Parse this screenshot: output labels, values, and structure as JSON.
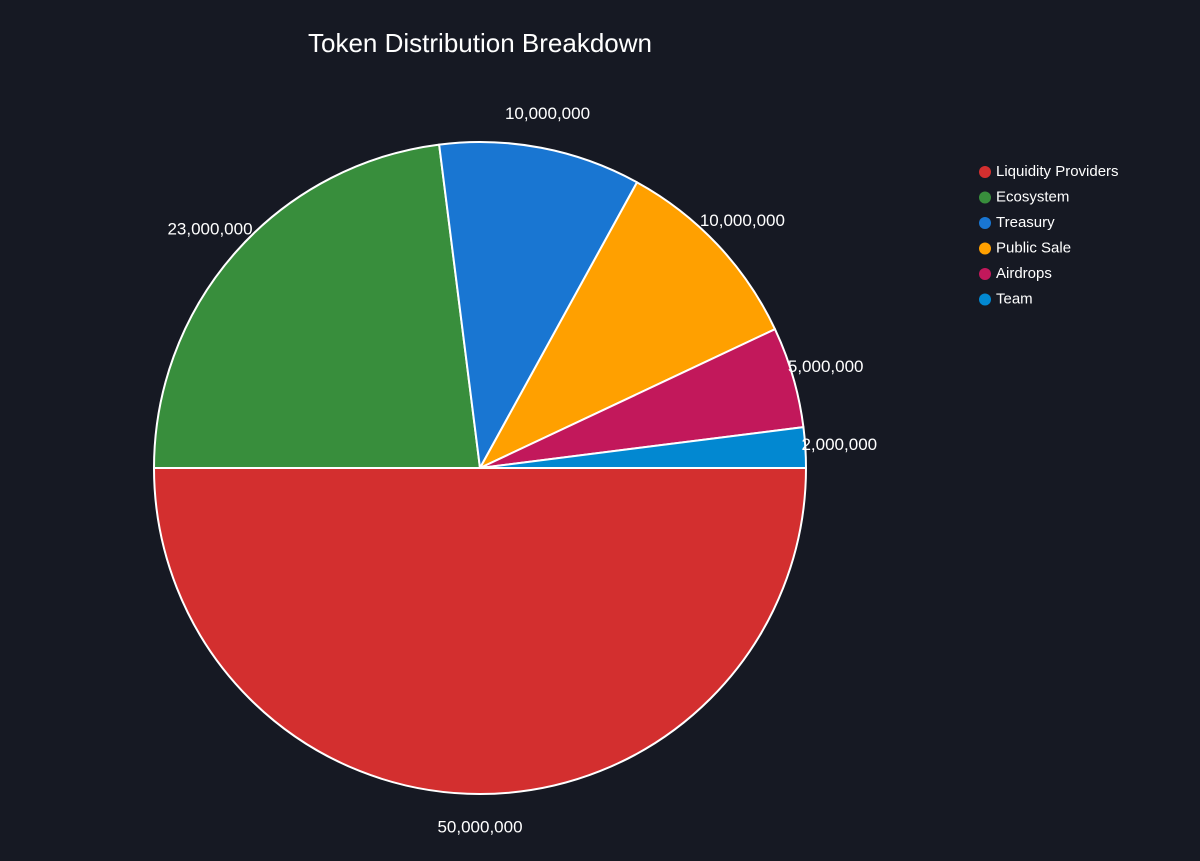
{
  "chart_data": {
    "type": "pie",
    "title": "Token Distribution Breakdown",
    "categories": [
      "Liquidity Providers",
      "Ecosystem",
      "Treasury",
      "Public Sale",
      "Airdrops",
      "Team"
    ],
    "values": [
      50000000,
      23000000,
      10000000,
      10000000,
      5000000,
      2000000
    ],
    "value_labels": [
      "50,000,000",
      "23,000,000",
      "10,000,000",
      "10,000,000",
      "5,000,000",
      "2,000,000"
    ],
    "colors": [
      "#d32f2f",
      "#388e3c",
      "#1976d2",
      "#ffa000",
      "#c2185b",
      "#0288d1"
    ],
    "legend_position": "top-right",
    "start_angle_deg": 0,
    "direction": "clockwise"
  }
}
